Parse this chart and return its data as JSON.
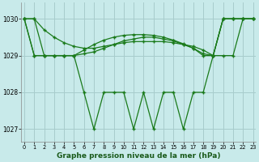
{
  "x": [
    0,
    1,
    2,
    3,
    4,
    5,
    6,
    7,
    8,
    9,
    10,
    11,
    12,
    13,
    14,
    15,
    16,
    17,
    18,
    19,
    20,
    21,
    22,
    23
  ],
  "line1": [
    1030.0,
    1030.0,
    1029.0,
    1029.0,
    1029.0,
    1029.0,
    1028.0,
    1027.0,
    1028.0,
    1028.0,
    1028.0,
    1027.0,
    1028.0,
    1027.0,
    1028.0,
    1028.0,
    1027.0,
    1028.0,
    1028.0,
    1029.0,
    1030.0,
    1030.0,
    1030.0,
    1030.0
  ],
  "line2": [
    1030.0,
    1030.0,
    1029.7,
    1029.5,
    1029.35,
    1029.25,
    1029.2,
    1029.2,
    1029.25,
    1029.3,
    1029.35,
    1029.38,
    1029.38,
    1029.38,
    1029.38,
    1029.35,
    1029.3,
    1029.25,
    1029.15,
    1029.0,
    1030.0,
    1030.0,
    1030.0,
    1030.0
  ],
  "line3": [
    1030.0,
    1029.0,
    1029.0,
    1029.0,
    1029.0,
    1029.0,
    1029.05,
    1029.1,
    1029.2,
    1029.3,
    1029.4,
    1029.45,
    1029.5,
    1029.5,
    1029.45,
    1029.4,
    1029.3,
    1029.2,
    1029.0,
    1029.0,
    1030.0,
    1030.0,
    1030.0,
    1030.0
  ],
  "line4": [
    1030.0,
    1029.0,
    1029.0,
    1029.0,
    1029.0,
    1029.0,
    1029.15,
    1029.3,
    1029.42,
    1029.5,
    1029.55,
    1029.57,
    1029.57,
    1029.55,
    1029.5,
    1029.42,
    1029.32,
    1029.2,
    1029.05,
    1029.0,
    1029.0,
    1029.0,
    1030.0,
    1030.0
  ],
  "line_color": "#1a7a1a",
  "bg_color": "#c8eaea",
  "grid_color": "#a8cccc",
  "xlabel": "Graphe pression niveau de la mer (hPa)",
  "ylim_min": 1026.65,
  "ylim_max": 1030.45,
  "yticks": [
    1027,
    1028,
    1029,
    1030
  ],
  "xticks": [
    0,
    1,
    2,
    3,
    4,
    5,
    6,
    7,
    8,
    9,
    10,
    11,
    12,
    13,
    14,
    15,
    16,
    17,
    18,
    19,
    20,
    21,
    22,
    23
  ]
}
